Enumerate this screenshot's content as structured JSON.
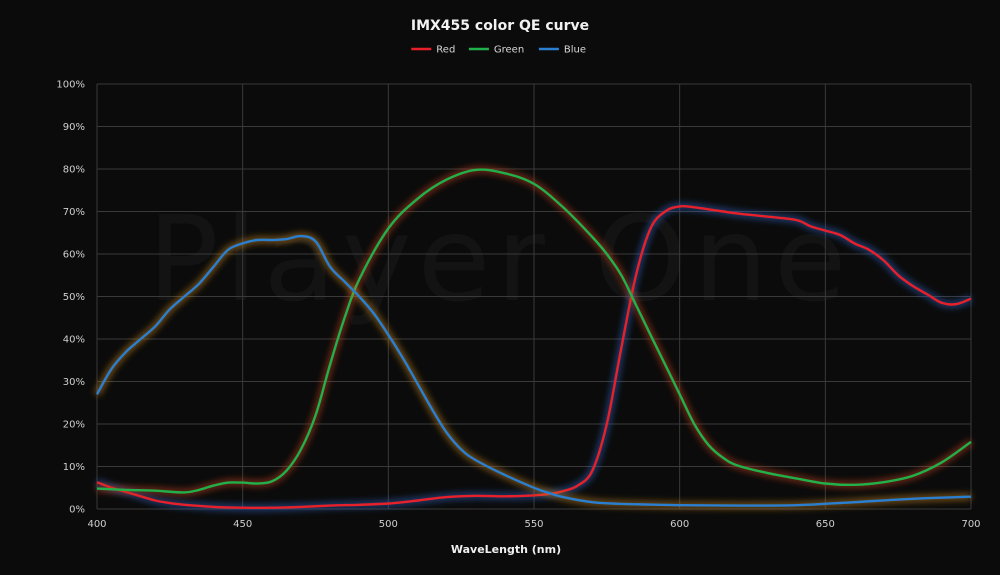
{
  "watermark": "Player One",
  "chart_data": {
    "type": "line",
    "title": "IMX455 color QE curve",
    "xlabel": "WaveLength (nm)",
    "ylabel": "",
    "xlim": [
      400,
      700
    ],
    "ylim": [
      0,
      100
    ],
    "x_ticks": [
      400,
      450,
      500,
      550,
      600,
      650,
      700
    ],
    "y_ticks": [
      "0%",
      "10%",
      "20%",
      "30%",
      "40%",
      "50%",
      "60%",
      "70%",
      "80%",
      "90%",
      "100%"
    ],
    "grid": true,
    "legend": "top-center",
    "series": [
      {
        "name": "Red",
        "color": "#e8202a",
        "glow": "#3060c0",
        "points": [
          [
            400,
            6.3
          ],
          [
            405,
            5
          ],
          [
            410,
            4
          ],
          [
            415,
            3
          ],
          [
            420,
            2
          ],
          [
            425,
            1.4
          ],
          [
            430,
            1
          ],
          [
            440,
            0.5
          ],
          [
            450,
            0.3
          ],
          [
            460,
            0.3
          ],
          [
            470,
            0.5
          ],
          [
            480,
            0.8
          ],
          [
            490,
            1
          ],
          [
            500,
            1.3
          ],
          [
            510,
            2
          ],
          [
            520,
            2.8
          ],
          [
            530,
            3.1
          ],
          [
            540,
            3
          ],
          [
            550,
            3.2
          ],
          [
            555,
            3.5
          ],
          [
            560,
            4.2
          ],
          [
            565,
            5.5
          ],
          [
            570,
            9
          ],
          [
            575,
            20
          ],
          [
            580,
            38
          ],
          [
            585,
            55
          ],
          [
            590,
            66
          ],
          [
            595,
            70
          ],
          [
            600,
            71.2
          ],
          [
            605,
            71
          ],
          [
            610,
            70.5
          ],
          [
            615,
            70
          ],
          [
            620,
            69.5
          ],
          [
            630,
            68.8
          ],
          [
            640,
            68
          ],
          [
            645,
            66.5
          ],
          [
            650,
            65.5
          ],
          [
            655,
            64.5
          ],
          [
            660,
            62.5
          ],
          [
            665,
            61
          ],
          [
            670,
            58.5
          ],
          [
            675,
            55
          ],
          [
            680,
            52.5
          ],
          [
            685,
            50.5
          ],
          [
            690,
            48.5
          ],
          [
            695,
            48.2
          ],
          [
            700,
            49.5
          ]
        ]
      },
      {
        "name": "Green",
        "color": "#22b04a",
        "glow": "#c04020",
        "points": [
          [
            400,
            4.8
          ],
          [
            410,
            4.5
          ],
          [
            420,
            4.3
          ],
          [
            430,
            3.9
          ],
          [
            435,
            4.5
          ],
          [
            440,
            5.5
          ],
          [
            445,
            6.2
          ],
          [
            450,
            6.2
          ],
          [
            455,
            6
          ],
          [
            460,
            6.5
          ],
          [
            465,
            9
          ],
          [
            470,
            14
          ],
          [
            475,
            22
          ],
          [
            480,
            34
          ],
          [
            485,
            45
          ],
          [
            490,
            54
          ],
          [
            500,
            66
          ],
          [
            510,
            73
          ],
          [
            520,
            77.5
          ],
          [
            530,
            79.8
          ],
          [
            540,
            79
          ],
          [
            550,
            76.5
          ],
          [
            560,
            71
          ],
          [
            570,
            64
          ],
          [
            575,
            60
          ],
          [
            580,
            55
          ],
          [
            585,
            48
          ],
          [
            590,
            41
          ],
          [
            595,
            34
          ],
          [
            600,
            27
          ],
          [
            605,
            20
          ],
          [
            610,
            15
          ],
          [
            615,
            12
          ],
          [
            620,
            10.2
          ],
          [
            630,
            8.5
          ],
          [
            640,
            7.2
          ],
          [
            650,
            6
          ],
          [
            660,
            5.7
          ],
          [
            670,
            6.3
          ],
          [
            680,
            7.8
          ],
          [
            690,
            11
          ],
          [
            700,
            15.8
          ]
        ]
      },
      {
        "name": "Blue",
        "color": "#2a7fd0",
        "glow": "#c08020",
        "points": [
          [
            400,
            27
          ],
          [
            405,
            33
          ],
          [
            410,
            37
          ],
          [
            415,
            40
          ],
          [
            420,
            43
          ],
          [
            425,
            47
          ],
          [
            430,
            50
          ],
          [
            435,
            53
          ],
          [
            440,
            57
          ],
          [
            445,
            61
          ],
          [
            450,
            62.5
          ],
          [
            455,
            63.3
          ],
          [
            460,
            63.3
          ],
          [
            465,
            63.5
          ],
          [
            470,
            64.2
          ],
          [
            475,
            63
          ],
          [
            480,
            57
          ],
          [
            485,
            53.5
          ],
          [
            490,
            50
          ],
          [
            495,
            46
          ],
          [
            500,
            41
          ],
          [
            505,
            35.5
          ],
          [
            510,
            29.5
          ],
          [
            515,
            23.5
          ],
          [
            520,
            18
          ],
          [
            525,
            14
          ],
          [
            530,
            11.5
          ],
          [
            540,
            8
          ],
          [
            550,
            5
          ],
          [
            555,
            3.8
          ],
          [
            560,
            2.8
          ],
          [
            570,
            1.6
          ],
          [
            580,
            1.2
          ],
          [
            600,
            0.9
          ],
          [
            620,
            0.8
          ],
          [
            640,
            0.9
          ],
          [
            660,
            1.6
          ],
          [
            680,
            2.4
          ],
          [
            700,
            2.9
          ]
        ]
      }
    ]
  }
}
